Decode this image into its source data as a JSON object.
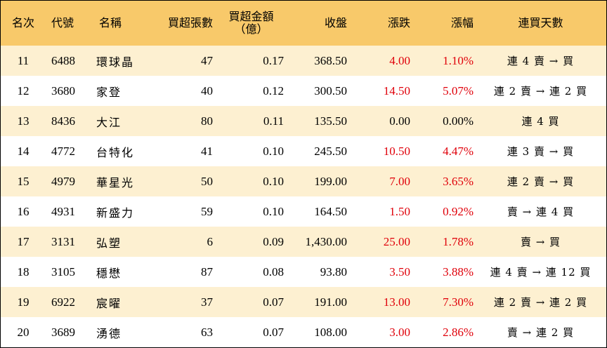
{
  "headers": {
    "rank": "名次",
    "code": "代號",
    "name": "名稱",
    "net_lots": "買超張數",
    "net_amount_line1": "買超金額",
    "net_amount_line2": "（億）",
    "close": "收盤",
    "change": "漲跌",
    "change_pct": "漲幅",
    "streak": "連買天數"
  },
  "colors": {
    "header_bg": "#f8c96a",
    "odd_row_bg": "#fdf0d1",
    "even_row_bg": "#ffffff",
    "up_red": "#e0000a"
  },
  "rows": [
    {
      "rank": "11",
      "code": "6488",
      "name": "環球晶",
      "net_lots": "47",
      "net_amount": "0.17",
      "close": "368.50",
      "change": "4.00",
      "change_pct": "1.10%",
      "streak": "連 4 賣 → 買",
      "direction": "up"
    },
    {
      "rank": "12",
      "code": "3680",
      "name": "家登",
      "net_lots": "40",
      "net_amount": "0.12",
      "close": "300.50",
      "change": "14.50",
      "change_pct": "5.07%",
      "streak": "連 2 賣 → 連 2 買",
      "direction": "up"
    },
    {
      "rank": "13",
      "code": "8436",
      "name": "大江",
      "net_lots": "80",
      "net_amount": "0.11",
      "close": "135.50",
      "change": "0.00",
      "change_pct": "0.00%",
      "streak": "連 4 買",
      "direction": "flat"
    },
    {
      "rank": "14",
      "code": "4772",
      "name": "台特化",
      "net_lots": "41",
      "net_amount": "0.10",
      "close": "245.50",
      "change": "10.50",
      "change_pct": "4.47%",
      "streak": "連 3 賣 → 買",
      "direction": "up"
    },
    {
      "rank": "15",
      "code": "4979",
      "name": "華星光",
      "net_lots": "50",
      "net_amount": "0.10",
      "close": "199.00",
      "change": "7.00",
      "change_pct": "3.65%",
      "streak": "連 2 賣 → 買",
      "direction": "up"
    },
    {
      "rank": "16",
      "code": "4931",
      "name": "新盛力",
      "net_lots": "59",
      "net_amount": "0.10",
      "close": "164.50",
      "change": "1.50",
      "change_pct": "0.92%",
      "streak": "賣 → 連 4 買",
      "direction": "up"
    },
    {
      "rank": "17",
      "code": "3131",
      "name": "弘塑",
      "net_lots": "6",
      "net_amount": "0.09",
      "close": "1,430.00",
      "change": "25.00",
      "change_pct": "1.78%",
      "streak": "賣 → 買",
      "direction": "up"
    },
    {
      "rank": "18",
      "code": "3105",
      "name": "穩懋",
      "net_lots": "87",
      "net_amount": "0.08",
      "close": "93.80",
      "change": "3.50",
      "change_pct": "3.88%",
      "streak": "連 4 賣 → 連 12 買",
      "direction": "up"
    },
    {
      "rank": "19",
      "code": "6922",
      "name": "宸曜",
      "net_lots": "37",
      "net_amount": "0.07",
      "close": "191.00",
      "change": "13.00",
      "change_pct": "7.30%",
      "streak": "連 2 賣 → 連 2 買",
      "direction": "up"
    },
    {
      "rank": "20",
      "code": "3689",
      "name": "湧德",
      "net_lots": "63",
      "net_amount": "0.07",
      "close": "108.00",
      "change": "3.00",
      "change_pct": "2.86%",
      "streak": "賣 → 連 2 買",
      "direction": "up"
    }
  ]
}
